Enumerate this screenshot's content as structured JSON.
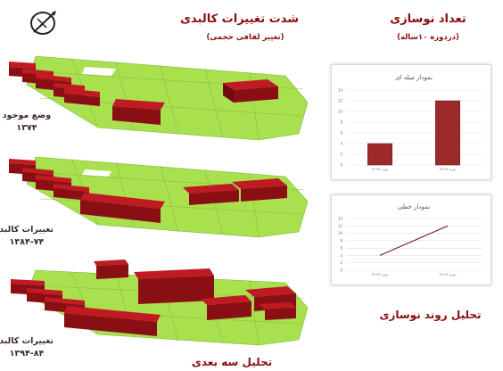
{
  "header": {
    "intensity_title": "شدت تغییرات کالبدی",
    "intensity_subtitle": "(تغییر لفافی حجمی)",
    "renewal_title": "تعداد نوسازی",
    "renewal_subtitle": "(دردوره ۱۰ساله)"
  },
  "colors": {
    "ground": "#a9e04e",
    "building_top": "#c01a22",
    "building_side": "#8a0f15",
    "bar": "#9c2a2a",
    "title": "#8b0d0d"
  },
  "left_labels": [
    {
      "line1": "وضع موجود",
      "line2": "۱۳۷۴"
    },
    {
      "line1": "تغییرات کالبدی",
      "line2": "۱۳۸۴-۷۴"
    },
    {
      "line1": "تغییرات کالبدی",
      "line2": "۱۳۹۴-۸۴"
    }
  ],
  "footer": {
    "three_d_analysis": "تحلیل سه بعدی",
    "renewal_trend_analysis": "تحلیل روند نوسازی"
  },
  "chart_data": [
    {
      "type": "bar",
      "title": "نمودار میله ای",
      "categories": [
        "دوره ۷۴-۸۴",
        "دوره ۸۴-۹۴"
      ],
      "values": [
        4,
        12
      ],
      "ylim": [
        0,
        14
      ],
      "yticks": [
        0,
        2,
        4,
        6,
        8,
        10,
        12,
        14
      ],
      "grid": true
    },
    {
      "type": "line",
      "title": "نمودار خطی",
      "categories": [
        "دوره ۷۴-۸۴",
        "دوره ۸۴-۹۴"
      ],
      "values": [
        4,
        12
      ],
      "ylim": [
        0,
        14
      ],
      "yticks": [
        0,
        2,
        4,
        6,
        8,
        10,
        12,
        14
      ],
      "grid": true
    }
  ]
}
